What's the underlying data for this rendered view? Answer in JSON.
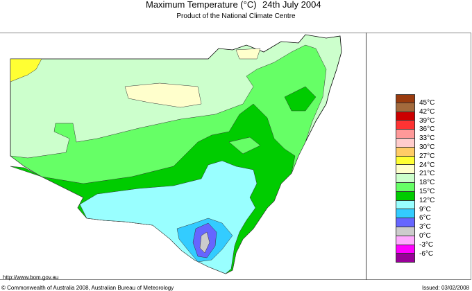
{
  "header": {
    "title": "Maximum Temperature (°C)",
    "date": "24th July 2004",
    "subtitle": "Product of the National Climate Centre"
  },
  "legend": {
    "labels": [
      "45°C",
      "42°C",
      "39°C",
      "36°C",
      "33°C",
      "30°C",
      "27°C",
      "24°C",
      "21°C",
      "18°C",
      "15°C",
      "12°C",
      "9°C",
      "6°C",
      "3°C",
      "0°C",
      "-3°C",
      "-6°C"
    ],
    "colors": [
      "#9a3b0e",
      "#a36a3c",
      "#cc0000",
      "#ff3333",
      "#ff9999",
      "#ffcccc",
      "#ffcc66",
      "#ffff33",
      "#ffffcc",
      "#ccffcc",
      "#66ff66",
      "#00cc00",
      "#99ffff",
      "#33ccff",
      "#6666ff",
      "#cccccc",
      "#ffaaff",
      "#ff00ff",
      "#990099"
    ]
  },
  "footer": {
    "url": "http://www.bom.gov.au",
    "copyright": "© Commonwealth of Australia 2008, Australian Bureau of Meteorology",
    "issued": "Issued: 03/02/2008"
  }
}
